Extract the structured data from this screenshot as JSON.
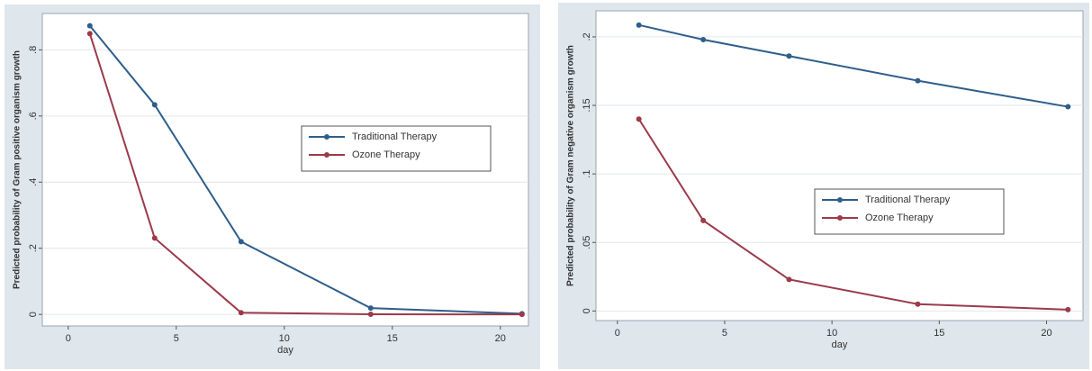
{
  "chart_data": [
    {
      "type": "line",
      "xlabel": "day",
      "ylabel": "Predicted probability of Gram positive organism growth",
      "x": [
        1,
        4,
        8,
        14,
        21
      ],
      "series": [
        {
          "name": "Traditional Therapy",
          "color": "#2e5e8a",
          "values": [
            0.873,
            0.634,
            0.22,
            0.019,
            0.002
          ]
        },
        {
          "name": "Ozone Therapy",
          "color": "#9b3a4a",
          "values": [
            0.849,
            0.231,
            0.005,
            0.0005,
            0
          ]
        }
      ],
      "xlim": [
        -1.2,
        21.3
      ],
      "xticks": [
        0,
        5,
        10,
        15,
        20
      ],
      "ylim": [
        -0.035,
        0.91
      ],
      "yticks": [
        0,
        {
          "value": 0.2,
          "label": ".2"
        },
        {
          "value": 0.4,
          "label": ".4"
        },
        {
          "value": 0.6,
          "label": ".6"
        },
        {
          "value": 0.8,
          "label": ".8"
        }
      ],
      "grid": true
    },
    {
      "type": "line",
      "xlabel": "day",
      "ylabel": "Predicted probability of Gram negative organism growth",
      "x": [
        1,
        4,
        8,
        14,
        21
      ],
      "series": [
        {
          "name": "Traditional Therapy",
          "color": "#2e5e8a",
          "values": [
            0.2086,
            0.198,
            0.186,
            0.168,
            0.149
          ]
        },
        {
          "name": "Ozone Therapy",
          "color": "#9b3a4a",
          "values": [
            0.14,
            0.066,
            0.023,
            0.005,
            0.001
          ]
        }
      ],
      "xlim": [
        -1,
        21.7
      ],
      "xticks": [
        0,
        5,
        10,
        15,
        20
      ],
      "ylim": [
        -0.007,
        0.219
      ],
      "yticks": [
        0,
        {
          "value": 0.05,
          "label": ".05"
        },
        {
          "value": 0.1,
          "label": ".1"
        },
        {
          "value": 0.15,
          "label": ".15"
        },
        {
          "value": 0.2,
          "label": ".2"
        }
      ],
      "grid": true
    }
  ]
}
